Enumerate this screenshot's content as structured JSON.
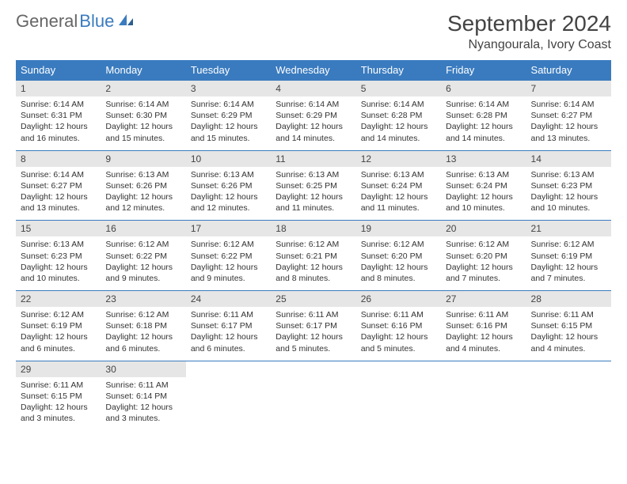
{
  "brand": {
    "part1": "General",
    "part2": "Blue"
  },
  "header": {
    "month_title": "September 2024",
    "location": "Nyangourala, Ivory Coast"
  },
  "colors": {
    "header_bg": "#3a7bbf",
    "header_text": "#ffffff",
    "daynum_bg": "#e6e6e6",
    "week_divider": "#3a7bbf",
    "text": "#333333",
    "background": "#ffffff"
  },
  "typography": {
    "month_title_size_pt": 21,
    "location_size_pt": 12,
    "dow_size_pt": 10,
    "body_size_pt": 8
  },
  "calendar": {
    "days_of_week": [
      "Sunday",
      "Monday",
      "Tuesday",
      "Wednesday",
      "Thursday",
      "Friday",
      "Saturday"
    ],
    "start_day_index": 0,
    "num_days": 30,
    "days": [
      {
        "n": 1,
        "sunrise": "6:14 AM",
        "sunset": "6:31 PM",
        "daylight": "12 hours and 16 minutes."
      },
      {
        "n": 2,
        "sunrise": "6:14 AM",
        "sunset": "6:30 PM",
        "daylight": "12 hours and 15 minutes."
      },
      {
        "n": 3,
        "sunrise": "6:14 AM",
        "sunset": "6:29 PM",
        "daylight": "12 hours and 15 minutes."
      },
      {
        "n": 4,
        "sunrise": "6:14 AM",
        "sunset": "6:29 PM",
        "daylight": "12 hours and 14 minutes."
      },
      {
        "n": 5,
        "sunrise": "6:14 AM",
        "sunset": "6:28 PM",
        "daylight": "12 hours and 14 minutes."
      },
      {
        "n": 6,
        "sunrise": "6:14 AM",
        "sunset": "6:28 PM",
        "daylight": "12 hours and 14 minutes."
      },
      {
        "n": 7,
        "sunrise": "6:14 AM",
        "sunset": "6:27 PM",
        "daylight": "12 hours and 13 minutes."
      },
      {
        "n": 8,
        "sunrise": "6:14 AM",
        "sunset": "6:27 PM",
        "daylight": "12 hours and 13 minutes."
      },
      {
        "n": 9,
        "sunrise": "6:13 AM",
        "sunset": "6:26 PM",
        "daylight": "12 hours and 12 minutes."
      },
      {
        "n": 10,
        "sunrise": "6:13 AM",
        "sunset": "6:26 PM",
        "daylight": "12 hours and 12 minutes."
      },
      {
        "n": 11,
        "sunrise": "6:13 AM",
        "sunset": "6:25 PM",
        "daylight": "12 hours and 11 minutes."
      },
      {
        "n": 12,
        "sunrise": "6:13 AM",
        "sunset": "6:24 PM",
        "daylight": "12 hours and 11 minutes."
      },
      {
        "n": 13,
        "sunrise": "6:13 AM",
        "sunset": "6:24 PM",
        "daylight": "12 hours and 10 minutes."
      },
      {
        "n": 14,
        "sunrise": "6:13 AM",
        "sunset": "6:23 PM",
        "daylight": "12 hours and 10 minutes."
      },
      {
        "n": 15,
        "sunrise": "6:13 AM",
        "sunset": "6:23 PM",
        "daylight": "12 hours and 10 minutes."
      },
      {
        "n": 16,
        "sunrise": "6:12 AM",
        "sunset": "6:22 PM",
        "daylight": "12 hours and 9 minutes."
      },
      {
        "n": 17,
        "sunrise": "6:12 AM",
        "sunset": "6:22 PM",
        "daylight": "12 hours and 9 minutes."
      },
      {
        "n": 18,
        "sunrise": "6:12 AM",
        "sunset": "6:21 PM",
        "daylight": "12 hours and 8 minutes."
      },
      {
        "n": 19,
        "sunrise": "6:12 AM",
        "sunset": "6:20 PM",
        "daylight": "12 hours and 8 minutes."
      },
      {
        "n": 20,
        "sunrise": "6:12 AM",
        "sunset": "6:20 PM",
        "daylight": "12 hours and 7 minutes."
      },
      {
        "n": 21,
        "sunrise": "6:12 AM",
        "sunset": "6:19 PM",
        "daylight": "12 hours and 7 minutes."
      },
      {
        "n": 22,
        "sunrise": "6:12 AM",
        "sunset": "6:19 PM",
        "daylight": "12 hours and 6 minutes."
      },
      {
        "n": 23,
        "sunrise": "6:12 AM",
        "sunset": "6:18 PM",
        "daylight": "12 hours and 6 minutes."
      },
      {
        "n": 24,
        "sunrise": "6:11 AM",
        "sunset": "6:17 PM",
        "daylight": "12 hours and 6 minutes."
      },
      {
        "n": 25,
        "sunrise": "6:11 AM",
        "sunset": "6:17 PM",
        "daylight": "12 hours and 5 minutes."
      },
      {
        "n": 26,
        "sunrise": "6:11 AM",
        "sunset": "6:16 PM",
        "daylight": "12 hours and 5 minutes."
      },
      {
        "n": 27,
        "sunrise": "6:11 AM",
        "sunset": "6:16 PM",
        "daylight": "12 hours and 4 minutes."
      },
      {
        "n": 28,
        "sunrise": "6:11 AM",
        "sunset": "6:15 PM",
        "daylight": "12 hours and 4 minutes."
      },
      {
        "n": 29,
        "sunrise": "6:11 AM",
        "sunset": "6:15 PM",
        "daylight": "12 hours and 3 minutes."
      },
      {
        "n": 30,
        "sunrise": "6:11 AM",
        "sunset": "6:14 PM",
        "daylight": "12 hours and 3 minutes."
      }
    ],
    "labels": {
      "sunrise_prefix": "Sunrise: ",
      "sunset_prefix": "Sunset: ",
      "daylight_prefix": "Daylight: "
    }
  }
}
